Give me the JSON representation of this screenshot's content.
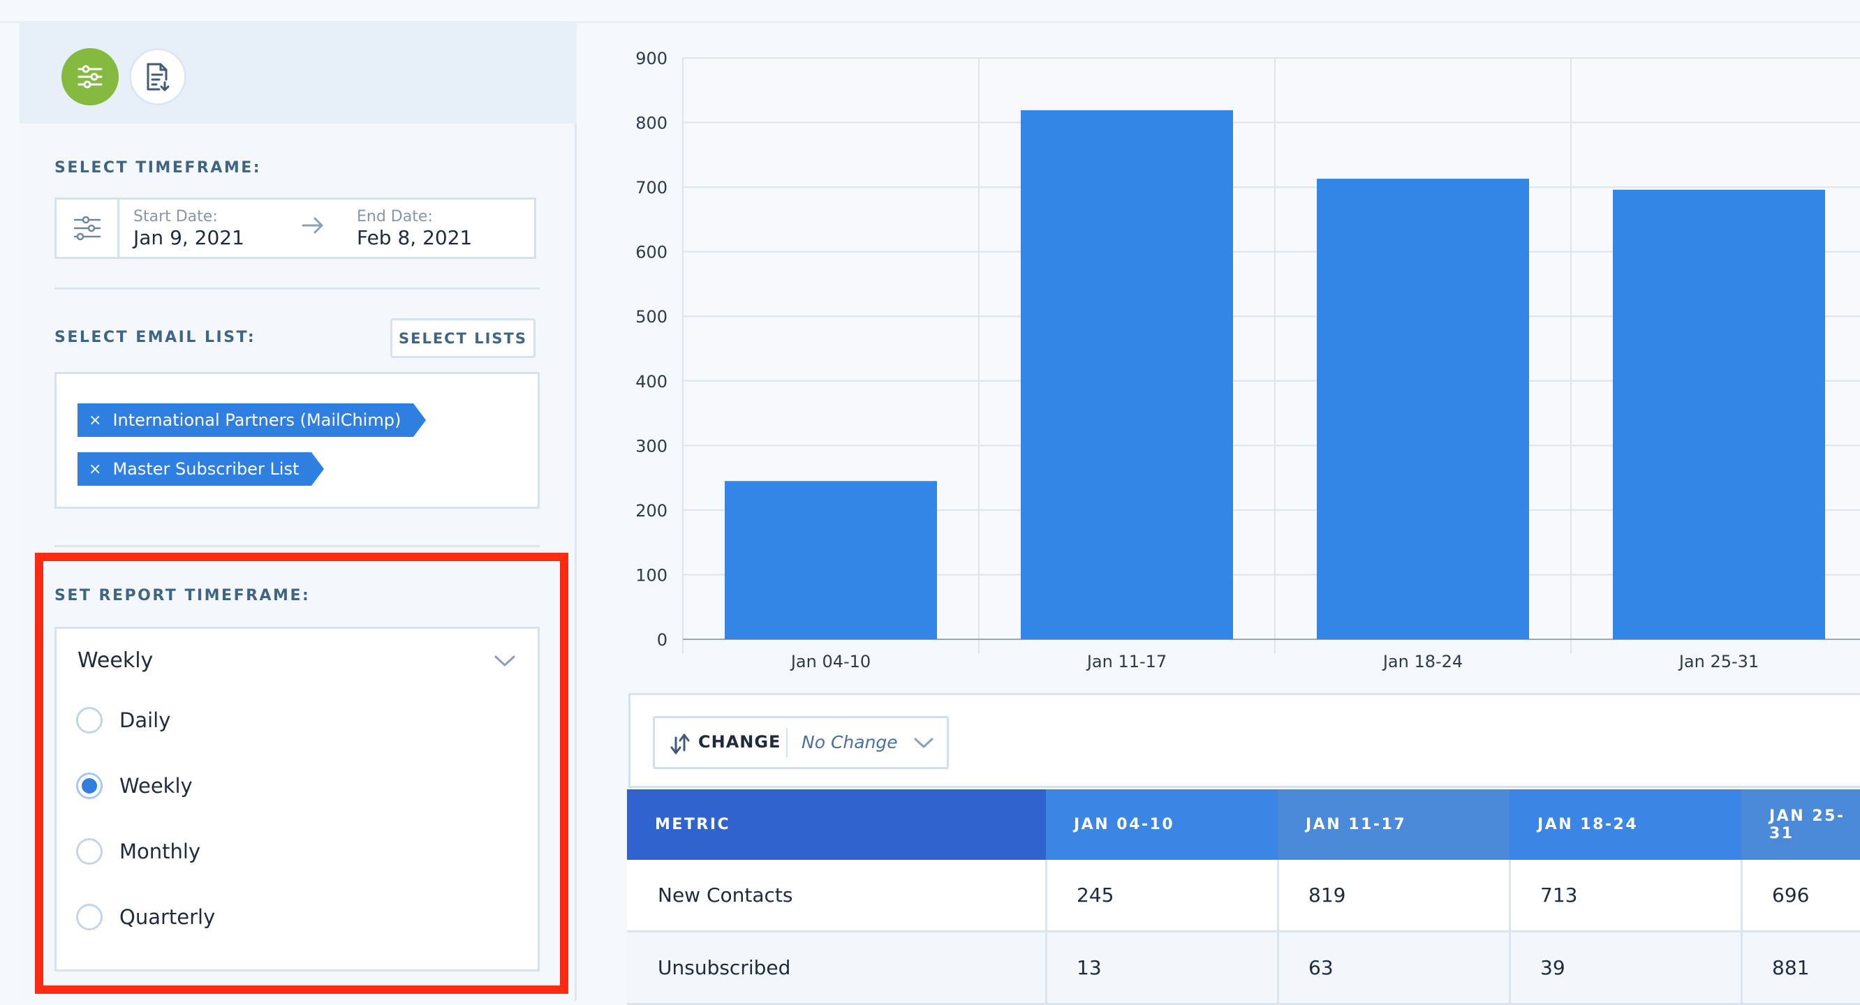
{
  "sidebar": {
    "timeframe_label": "SELECT TIMEFRAME:",
    "start_caption": "Start Date:",
    "start_value": "Jan 9, 2021",
    "end_caption": "End Date:",
    "end_value": "Feb 8, 2021",
    "email_list_label": "SELECT EMAIL LIST:",
    "select_lists_button": "SELECT LISTS",
    "tags": [
      {
        "remove": "×",
        "label": "International Partners (MailChimp)"
      },
      {
        "remove": "×",
        "label": "Master Subscriber List"
      }
    ],
    "report_timeframe_label": "SET REPORT TIMEFRAME:",
    "report_timeframe_selected": "Weekly",
    "report_timeframe_options": [
      {
        "label": "Daily",
        "checked": false
      },
      {
        "label": "Weekly",
        "checked": true
      },
      {
        "label": "Monthly",
        "checked": false
      },
      {
        "label": "Quarterly",
        "checked": false
      }
    ],
    "highlight_color": "#ff2a12"
  },
  "chart_data": {
    "type": "bar",
    "categories": [
      "Jan 04-10",
      "Jan 11-17",
      "Jan 18-24",
      "Jan 25-31"
    ],
    "values": [
      245,
      819,
      713,
      696
    ],
    "ylim": [
      0,
      900
    ],
    "yticks": [
      0,
      100,
      200,
      300,
      400,
      500,
      600,
      700,
      800,
      900
    ],
    "grid": true,
    "bar_color": "#3385e6"
  },
  "change": {
    "label": "CHANGE",
    "value": "No Change"
  },
  "table": {
    "headers": [
      "METRIC",
      "JAN 04-10",
      "JAN 11-17",
      "JAN 18-24",
      "JAN 25-31"
    ],
    "header_colors": [
      "#3163cf",
      "#3b86e5",
      "#4a8ad9",
      "#3b86e5",
      "#4a8ad9"
    ],
    "rows": [
      [
        "New Contacts",
        "245",
        "819",
        "713",
        "696"
      ],
      [
        "Unsubscribed",
        "13",
        "63",
        "39",
        "881"
      ]
    ]
  },
  "icons": {
    "filters": "sliders-icon",
    "export": "document-download-icon",
    "date": "sliders-icon",
    "arrow": "arrow-right-icon",
    "dropdown": "chevron-down-icon",
    "change": "sort-arrows-icon"
  }
}
